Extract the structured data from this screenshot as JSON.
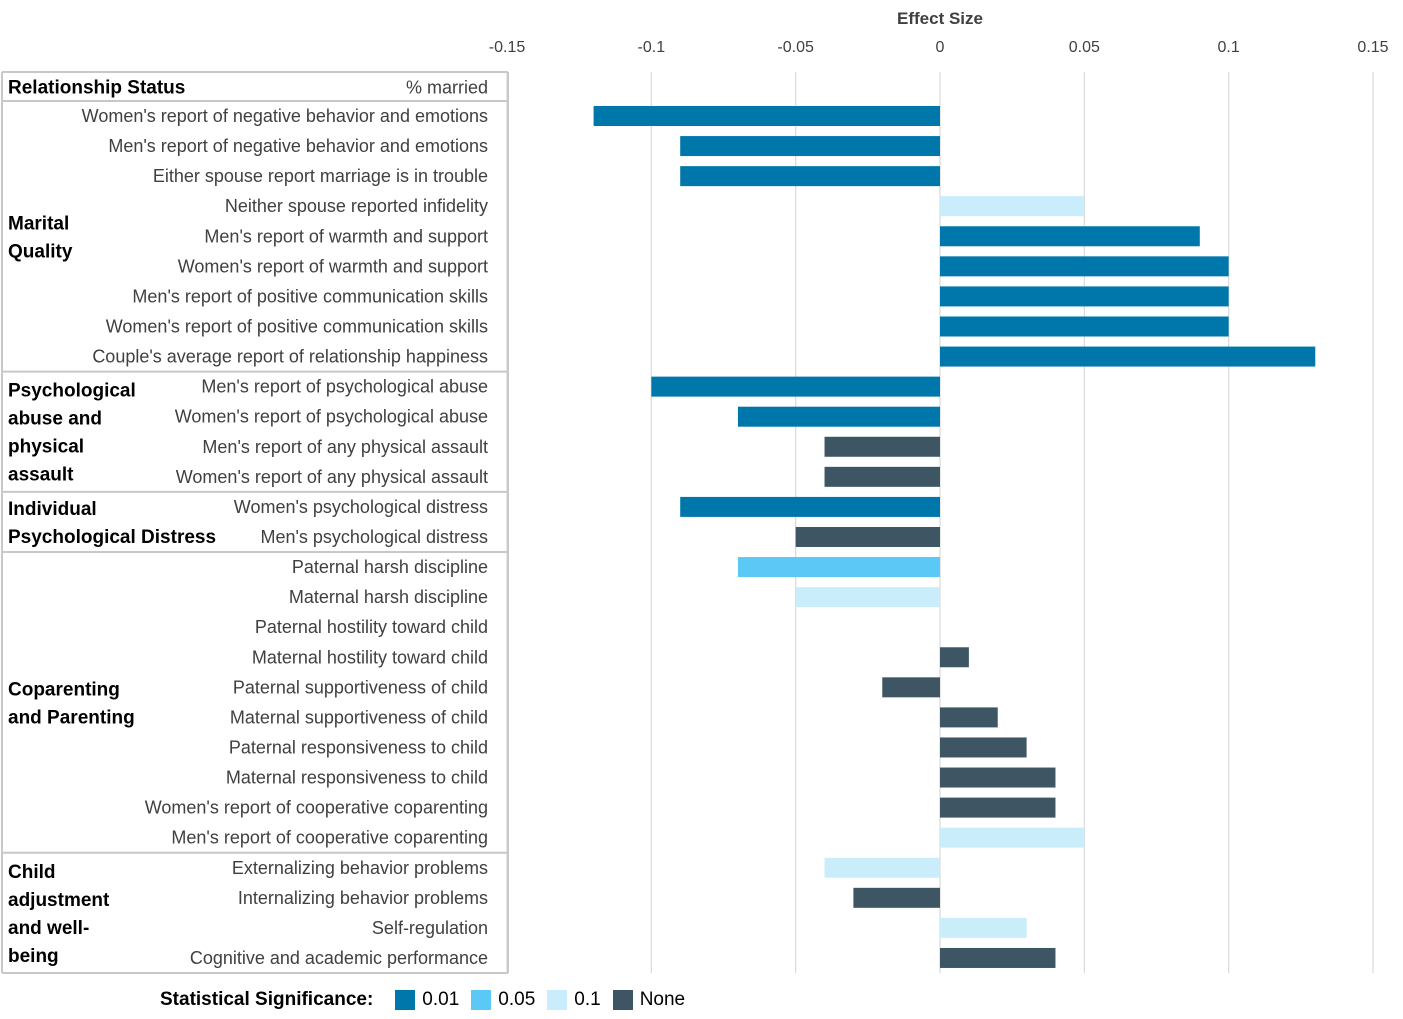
{
  "chart_data": {
    "type": "bar",
    "orientation": "horizontal",
    "xlabel": "Effect Size",
    "xlim": [
      -0.15,
      0.15
    ],
    "xticks": [
      -0.15,
      -0.1,
      -0.05,
      0,
      0.05,
      0.1,
      0.15
    ],
    "xtick_labels": [
      "-0.15",
      "-0.1",
      "-0.05",
      "0",
      "0.05",
      "0.1",
      "0.15"
    ],
    "grid": true,
    "header_row": {
      "group": "Relationship Status",
      "label": "% married"
    },
    "significance_colors": {
      "0.01": "#0077AA",
      "0.05": "#5BC8F5",
      "0.1": "#C9EDFB",
      "None": "#3E5663"
    },
    "groups": [
      {
        "name": "Marital Quality",
        "lines": [
          "Marital",
          "Quality"
        ],
        "start": 0,
        "end": 8
      },
      {
        "name": "Psychological abuse and physical assault",
        "lines": [
          "Psychological",
          "abuse and",
          "physical",
          "assault"
        ],
        "start": 9,
        "end": 12
      },
      {
        "name": "Individual Psychological Distress",
        "lines": [
          "Individual",
          "Psychological Distress"
        ],
        "start": 13,
        "end": 14
      },
      {
        "name": "Coparenting and Parenting",
        "lines": [
          "Coparenting",
          "and Parenting"
        ],
        "start": 15,
        "end": 24
      },
      {
        "name": "Child adjustment and well-being",
        "lines": [
          "Child",
          "adjustment",
          "and well-",
          "being"
        ],
        "start": 25,
        "end": 28
      }
    ],
    "categories": [
      "Women's report of negative behavior and emotions",
      "Men's report of negative behavior and emotions",
      "Either spouse report marriage is in trouble",
      "Neither spouse reported infidelity",
      "Men's report of warmth and support",
      "Women's report of warmth and support",
      "Men's report of positive communication skills",
      "Women's report of positive communication skills",
      "Couple's average report of relationship happiness",
      "Men's report of psychological abuse",
      "Women's report of psychological abuse",
      "Men's report of any physical assault",
      "Women's report of any physical assault",
      "Women's psychological distress",
      "Men's psychological distress",
      "Paternal harsh discipline",
      "Maternal harsh discipline",
      "Paternal hostility toward child",
      "Maternal hostility toward child",
      "Paternal supportiveness of child",
      "Maternal supportiveness of child",
      "Paternal responsiveness to child",
      "Maternal responsiveness to child",
      "Women's report of cooperative coparenting",
      "Men's report of cooperative coparenting",
      "Externalizing behavior problems",
      "Internalizing behavior problems",
      "Self-regulation",
      "Cognitive and academic performance"
    ],
    "values": [
      -0.12,
      -0.09,
      -0.09,
      0.05,
      0.09,
      0.1,
      0.1,
      0.1,
      0.13,
      -0.1,
      -0.07,
      -0.04,
      -0.04,
      -0.09,
      -0.05,
      -0.07,
      -0.05,
      0,
      0.01,
      -0.02,
      0.02,
      0.03,
      0.04,
      0.04,
      0.05,
      -0.04,
      -0.03,
      0.03,
      0.04
    ],
    "significance": [
      "0.01",
      "0.01",
      "0.01",
      "0.1",
      "0.01",
      "0.01",
      "0.01",
      "0.01",
      "0.01",
      "0.01",
      "0.01",
      "None",
      "None",
      "0.01",
      "None",
      "0.05",
      "0.1",
      "None",
      "None",
      "None",
      "None",
      "None",
      "None",
      "None",
      "0.1",
      "0.1",
      "None",
      "0.1",
      "None"
    ],
    "legend": {
      "title": "Statistical Significance:",
      "entries": [
        "0.01",
        "0.05",
        "0.1",
        "None"
      ],
      "placement": "bottom"
    }
  }
}
